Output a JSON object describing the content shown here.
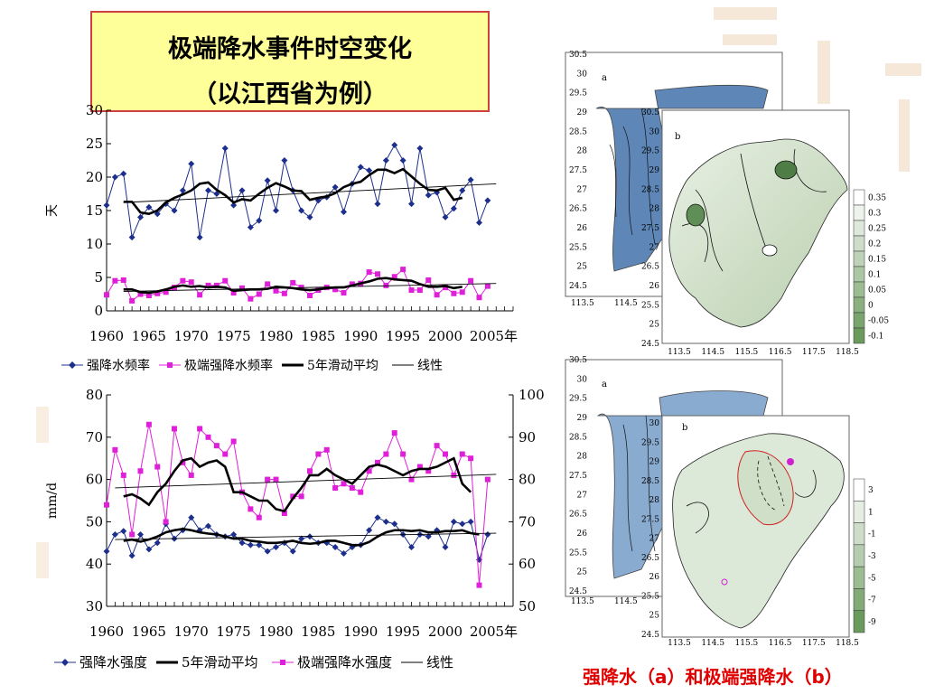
{
  "title": {
    "line1": "极端降水事件时空变化",
    "line2": "（以江西省为例）"
  },
  "caption": "强降水（a）和极端强降水（b）",
  "colors": {
    "heavy": "#1c2f8c",
    "extreme": "#e020d8",
    "avg": "#000000",
    "map_green_light": "#e4eee0",
    "map_green_dark": "#6a9a5c",
    "map_blue": "#6b93bf",
    "accent_red": "#e00000"
  },
  "chart_data": [
    {
      "type": "line",
      "ylabel": "天",
      "ylim": [
        0,
        30
      ],
      "yticks": [
        "0",
        "5",
        "10",
        "15",
        "20",
        "25",
        "30"
      ],
      "xlim": [
        1960,
        2008
      ],
      "xticks": [
        "1960",
        "1965",
        "1970",
        "1975",
        "1980",
        "1985",
        "1990",
        "1995",
        "2000",
        "2005年"
      ],
      "legend": [
        "强降水频率",
        "极端强降水频率",
        "5年滑动平均",
        "线性"
      ],
      "x_start": 1960,
      "series": [
        {
          "name": "强降水频率",
          "marker": "diamond",
          "values": [
            15.8,
            20,
            20.5,
            11,
            14,
            15.5,
            14.5,
            16,
            15,
            18,
            22,
            11,
            18,
            17.5,
            24.3,
            15.8,
            18,
            12.5,
            13.5,
            19.5,
            15,
            22.5,
            18,
            15,
            14,
            16.5,
            17,
            18.5,
            14.8,
            19,
            21.5,
            21,
            16,
            22.5,
            24.8,
            22.5,
            16,
            24.3,
            17.3,
            17.7,
            14,
            15.3,
            18,
            19.6,
            13.2,
            16.5
          ]
        },
        {
          "name": "极端强降水频率",
          "marker": "square",
          "values": [
            2.4,
            4.5,
            4.6,
            1.5,
            2.5,
            2.3,
            2.6,
            2.8,
            3.5,
            4.5,
            4.3,
            2.4,
            3.8,
            3.8,
            4.5,
            2.7,
            3.4,
            1.8,
            2.5,
            4,
            3,
            2.6,
            4.2,
            3.5,
            2.3,
            3.1,
            3.5,
            3.2,
            2.7,
            4,
            4.1,
            5.8,
            5.5,
            3.8,
            5.1,
            6.2,
            3.1,
            3.1,
            4.6,
            2.4,
            3.5,
            2.6,
            2.8,
            4.5,
            2,
            3.7
          ]
        },
        {
          "name": "5年滑动平均",
          "x_start": 1962,
          "values": [
            16.3,
            16.3,
            14.7,
            14.5,
            15,
            16.2,
            16.9,
            17.4,
            18,
            19,
            19.2,
            18.1,
            17.3,
            16.2,
            16.7,
            16.5,
            17.5,
            18.4,
            19.1,
            18.6,
            18,
            17.9,
            16.6,
            16.9,
            17.1,
            17.6,
            18.5,
            19,
            19.3,
            20.3,
            21.1,
            21.1,
            20.6,
            21.2,
            20.1,
            19,
            18.1,
            18,
            18.4,
            16.6,
            16.9
          ]
        },
        {
          "name": "5年滑动平均",
          "x_start": 1962,
          "values": [
            3.2,
            3.2,
            2.8,
            2.7,
            2.9,
            3.2,
            3.6,
            3.8,
            3.6,
            3.7,
            3.5,
            3.6,
            3.5,
            3,
            3.1,
            3.2,
            3.2,
            3.3,
            3.6,
            3.5,
            3.4,
            3.2,
            3.1,
            3.2,
            3.4,
            3.5,
            3.5,
            3.8,
            4.1,
            4.4,
            4.8,
            4.9,
            4.7,
            4.6,
            4.5,
            4,
            3.6,
            3.6,
            3.7,
            3.4,
            3.6
          ]
        },
        {
          "name": "线性",
          "x": [
            1962,
            2006
          ],
          "values": [
            16.2,
            19
          ]
        },
        {
          "name": "线性",
          "x": [
            1962,
            2006
          ],
          "values": [
            2.9,
            4.1
          ]
        }
      ]
    },
    {
      "type": "line",
      "ylabel": "mm/d",
      "ylim": [
        30,
        80
      ],
      "yticks": [
        "30",
        "40",
        "50",
        "60",
        "70",
        "80"
      ],
      "y2lim": [
        50,
        100
      ],
      "y2ticks": [
        "50",
        "60",
        "70",
        "80",
        "90",
        "100"
      ],
      "xlim": [
        1960,
        2008
      ],
      "xticks": [
        "1960",
        "1965",
        "1970",
        "1975",
        "1980",
        "1985",
        "1990",
        "1995",
        "2000",
        "2005年"
      ],
      "legend": [
        "强降水强度",
        "5年滑动平均",
        "极端强降水强度",
        "线性"
      ],
      "x_start": 1960,
      "series": [
        {
          "name": "强降水强度",
          "marker": "diamond",
          "axis": "left",
          "values": [
            43,
            47,
            47.8,
            42,
            47,
            43.5,
            45,
            49.5,
            46,
            48,
            51,
            48,
            49,
            47,
            46.5,
            47,
            45,
            44.5,
            44.5,
            43,
            44,
            45,
            43,
            46,
            46.5,
            45,
            45,
            44,
            42.5,
            44,
            44.5,
            48,
            51,
            50,
            49.5,
            47,
            44,
            47,
            46.5,
            48,
            44,
            50,
            49.5,
            50,
            41,
            47
          ]
        },
        {
          "name": "极端强降水强度",
          "marker": "square",
          "axis": "right",
          "values": [
            74,
            87,
            81,
            67,
            82,
            93,
            83,
            70,
            92,
            84,
            81,
            92,
            90,
            88,
            86,
            89,
            77,
            73,
            71,
            80,
            80,
            72,
            76,
            76,
            82,
            86,
            87,
            78,
            79,
            78,
            77,
            82,
            84,
            86,
            91,
            86,
            80,
            83,
            82,
            88,
            86,
            81,
            86,
            85,
            55,
            80
          ]
        },
        {
          "name": "5年滑动平均",
          "axis": "left",
          "x_start": 1962,
          "values": [
            56,
            56.5,
            55.5,
            54,
            57,
            59,
            62,
            64.5,
            65,
            63,
            64,
            64.5,
            63,
            57,
            57,
            56,
            55,
            55,
            53,
            52.5,
            55.5,
            58,
            61,
            61,
            62.5,
            61,
            60,
            59,
            61,
            63,
            63.5,
            63,
            62,
            61,
            62,
            62.5,
            62.5,
            63,
            64,
            65,
            59,
            57
          ]
        },
        {
          "name": "5年滑动平均",
          "axis": "left",
          "x_start": 1962,
          "values": [
            45.5,
            45.8,
            45.3,
            45.8,
            46.5,
            47.5,
            48,
            48.3,
            48,
            47.5,
            47.2,
            47,
            46.5,
            46,
            46,
            45.5,
            45.3,
            45,
            45,
            45.2,
            45.5,
            45,
            44.8,
            45,
            45.5,
            45.5,
            45,
            44.5,
            44.5,
            45.2,
            46.5,
            47.5,
            48,
            48,
            47.8,
            48,
            47.5,
            47.5,
            47.8,
            47.8,
            48,
            47.3,
            47
          ]
        },
        {
          "name": "线性",
          "axis": "left",
          "x": [
            1961,
            2006
          ],
          "values": [
            58,
            61.2
          ]
        },
        {
          "name": "线性",
          "axis": "left",
          "x": [
            1961,
            2006
          ],
          "values": [
            45.8,
            47.3
          ]
        }
      ]
    }
  ],
  "maps": {
    "top_back": {
      "panel": "a",
      "yticks": [
        "24.5",
        "25",
        "25.5",
        "26",
        "26.5",
        "27",
        "27.5",
        "28",
        "28.5",
        "29",
        "29.5",
        "30",
        "30.5"
      ],
      "xticks": [
        "113.5",
        "114.5"
      ]
    },
    "top_front": {
      "panel": "b",
      "yticks": [
        "24.5",
        "25",
        "25.5",
        "26",
        "26.5",
        "27",
        "27.5",
        "28",
        "28.5",
        "29",
        "29.5",
        "30",
        "30.5"
      ],
      "xticks": [
        "113.5",
        "114.5",
        "115.5",
        "116.5",
        "117.5",
        "118.5"
      ],
      "colorbar": [
        "0.35",
        "0.3",
        "0.25",
        "0.2",
        "0.15",
        "0.1",
        "0.05",
        "0",
        "-0.05",
        "-0.1"
      ]
    },
    "bottom_back": {
      "panel": "a",
      "yticks": [
        "24.5",
        "25",
        "25.5",
        "26",
        "26.5",
        "27",
        "27.5",
        "28",
        "28.5",
        "29",
        "29.5",
        "30",
        "30.5"
      ],
      "xticks": [
        "113.5",
        "114.5"
      ]
    },
    "bottom_front": {
      "panel": "b",
      "yticks": [
        "24.5",
        "25",
        "25.5",
        "26",
        "26.5",
        "27",
        "27.5",
        "28",
        "28.5",
        "29",
        "29.5",
        "30"
      ],
      "xticks": [
        "113.5",
        "114.5",
        "115.5",
        "116.5",
        "117.5",
        "118.5"
      ],
      "colorbar": [
        "3",
        "1",
        "-1",
        "-3",
        "-5",
        "-7",
        "-9"
      ]
    }
  }
}
